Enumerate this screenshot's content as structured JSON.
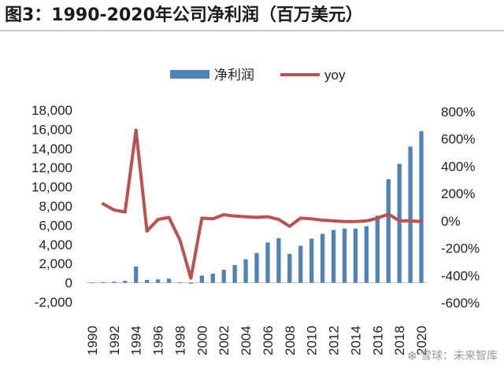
{
  "title": "图3：1990-2020年公司净利润（百万美元）",
  "watermark": {
    "text": "雪球：未来智库"
  },
  "chart_data": {
    "type": "bar+line",
    "legend": [
      {
        "name": "净利润",
        "kind": "bar",
        "color": "#4f81bd"
      },
      {
        "name": "yoy",
        "kind": "line",
        "color": "#c0504d"
      }
    ],
    "years": [
      1990,
      1991,
      1992,
      1993,
      1994,
      1995,
      1996,
      1997,
      1998,
      1999,
      2000,
      2001,
      2002,
      2003,
      2004,
      2005,
      2006,
      2007,
      2008,
      2009,
      2010,
      2011,
      2012,
      2013,
      2014,
      2015,
      2016,
      2017,
      2018,
      2019,
      2020
    ],
    "x_tick_labels": [
      "1990",
      "1992",
      "1994",
      "1996",
      "1998",
      "2000",
      "2002",
      "2004",
      "2006",
      "2008",
      "2010",
      "2012",
      "2014",
      "2016",
      "2018",
      "2020"
    ],
    "net_income": [
      20,
      80,
      120,
      200,
      1700,
      300,
      350,
      420,
      20,
      -100,
      750,
      950,
      1350,
      1850,
      2450,
      3100,
      4200,
      4650,
      3000,
      3850,
      4600,
      5100,
      5500,
      5650,
      5650,
      5900,
      7000,
      10800,
      12400,
      14200,
      15800
    ],
    "yoy_pct": [
      null,
      125,
      80,
      65,
      665,
      -75,
      10,
      25,
      -140,
      -420,
      20,
      15,
      45,
      35,
      30,
      25,
      30,
      10,
      -40,
      20,
      15,
      5,
      0,
      -5,
      -5,
      0,
      20,
      50,
      0,
      0,
      -5
    ],
    "y_left": {
      "min": -2000,
      "max": 18000,
      "step": 2000,
      "tick_labels": [
        "-2,000",
        "0",
        "2,000",
        "4,000",
        "6,000",
        "8,000",
        "10,000",
        "12,000",
        "14,000",
        "16,000",
        "18,000"
      ]
    },
    "y_right": {
      "min": -600,
      "max": 800,
      "step": 200,
      "tick_labels": [
        "-600%",
        "-400%",
        "-200%",
        "0%",
        "200%",
        "400%",
        "600%",
        "800%"
      ]
    }
  }
}
